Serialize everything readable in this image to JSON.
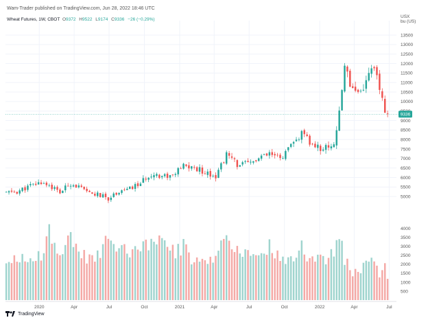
{
  "header": {
    "published_line": "Wam-Trader published on TradingView.com, Jun 28, 2022 18:46 UTC"
  },
  "legend": {
    "symbol": "Wheat Futures, 1W, CBOT",
    "open_label": "O",
    "open": "9372",
    "high_label": "H",
    "high": "9522",
    "low_label": "L",
    "low": "9174",
    "close_label": "C",
    "close": "9336",
    "change": "−26 (−0.29%)"
  },
  "axis": {
    "unit_line1": "USX",
    "unit_line2": "bu (US)"
  },
  "footer": {
    "brand": "TradingView"
  },
  "colors": {
    "up": "#26a69a",
    "down": "#ef5350",
    "up_volume": "#9fd4ce",
    "down_volume": "#f4a9a6",
    "last_price_tag": "#26a69a"
  },
  "chart_data": {
    "type": "candlestick",
    "title": "",
    "last_price": 9336,
    "y_ticks": [
      5000,
      5500,
      6000,
      6500,
      7000,
      7500,
      8000,
      8500,
      9000,
      9500,
      10000,
      10500,
      11000,
      11500,
      12000,
      12500,
      13000,
      13500
    ],
    "volume_ticks": [
      500,
      1000,
      1500,
      2000,
      2500,
      3000,
      3500,
      4000
    ],
    "x_ticks": [
      {
        "label": "2020",
        "date": "2020-01-01"
      },
      {
        "label": "Apr",
        "date": "2020-04-01"
      },
      {
        "label": "Jul",
        "date": "2020-07-01"
      },
      {
        "label": "Oct",
        "date": "2020-10-01"
      },
      {
        "label": "2021",
        "date": "2021-01-01"
      },
      {
        "label": "Apr",
        "date": "2021-04-01"
      },
      {
        "label": "Jul",
        "date": "2021-07-01"
      },
      {
        "label": "Oct",
        "date": "2021-10-01"
      },
      {
        "label": "2022",
        "date": "2022-01-01"
      },
      {
        "label": "Apr",
        "date": "2022-04-01"
      },
      {
        "label": "Jul",
        "date": "2022-07-01"
      }
    ],
    "x_range": [
      "2019-10-05",
      "2022-07-20"
    ],
    "price_range": [
      4500,
      13900
    ],
    "volume_range": [
      0,
      4300
    ],
    "key_points": [
      {
        "date": "2019-10-07",
        "close": 5200,
        "volume": 2300
      },
      {
        "date": "2019-11-04",
        "close": 5250,
        "volume": 2200
      },
      {
        "date": "2019-12-02",
        "close": 5500,
        "volume": 2300
      },
      {
        "date": "2020-01-06",
        "close": 5750,
        "volume": 2600
      },
      {
        "date": "2020-01-27",
        "close": 5600,
        "volume": 3800
      },
      {
        "date": "2020-02-24",
        "close": 5200,
        "volume": 2700
      },
      {
        "date": "2020-03-23",
        "close": 5700,
        "volume": 3600
      },
      {
        "date": "2020-04-13",
        "close": 5500,
        "volume": 2800
      },
      {
        "date": "2020-05-04",
        "close": 5200,
        "volume": 2300
      },
      {
        "date": "2020-06-01",
        "close": 5100,
        "volume": 2400
      },
      {
        "date": "2020-06-29",
        "close": 4900,
        "volume": 3700
      },
      {
        "date": "2020-07-27",
        "close": 5300,
        "volume": 2900
      },
      {
        "date": "2020-08-24",
        "close": 5400,
        "volume": 2800
      },
      {
        "date": "2020-09-21",
        "close": 5700,
        "volume": 3000
      },
      {
        "date": "2020-10-19",
        "close": 6200,
        "volume": 3300
      },
      {
        "date": "2020-11-16",
        "close": 6100,
        "volume": 3800
      },
      {
        "date": "2020-12-14",
        "close": 6100,
        "volume": 2700
      },
      {
        "date": "2021-01-11",
        "close": 6600,
        "volume": 3000
      },
      {
        "date": "2021-02-08",
        "close": 6500,
        "volume": 2100
      },
      {
        "date": "2021-03-08",
        "close": 6300,
        "volume": 2000
      },
      {
        "date": "2021-04-05",
        "close": 6100,
        "volume": 2200
      },
      {
        "date": "2021-05-03",
        "close": 7200,
        "volume": 3600
      },
      {
        "date": "2021-05-31",
        "close": 6700,
        "volume": 2600
      },
      {
        "date": "2021-06-28",
        "close": 6700,
        "volume": 2800
      },
      {
        "date": "2021-07-26",
        "close": 7000,
        "volume": 2500
      },
      {
        "date": "2021-08-23",
        "close": 7200,
        "volume": 3000
      },
      {
        "date": "2021-09-20",
        "close": 7000,
        "volume": 2300
      },
      {
        "date": "2021-10-18",
        "close": 7600,
        "volume": 2200
      },
      {
        "date": "2021-11-15",
        "close": 8300,
        "volume": 2900
      },
      {
        "date": "2021-12-13",
        "close": 7700,
        "volume": 2200
      },
      {
        "date": "2022-01-10",
        "close": 7500,
        "volume": 2300
      },
      {
        "date": "2022-02-07",
        "close": 7800,
        "volume": 2500
      },
      {
        "date": "2022-02-21",
        "close": 9300,
        "volume": 3600
      },
      {
        "date": "2022-03-07",
        "close": 12000,
        "volume": 2400
      },
      {
        "date": "2022-03-21",
        "close": 11000,
        "volume": 1700
      },
      {
        "date": "2022-04-11",
        "close": 10500,
        "volume": 1700
      },
      {
        "date": "2022-05-02",
        "close": 11000,
        "volume": 2100
      },
      {
        "date": "2022-05-16",
        "close": 12000,
        "volume": 2700
      },
      {
        "date": "2022-06-06",
        "close": 10700,
        "volume": 1600
      },
      {
        "date": "2022-06-20",
        "close": 9300,
        "volume": 1700
      },
      {
        "date": "2022-06-27",
        "close": 9336,
        "volume": 1000
      }
    ]
  }
}
